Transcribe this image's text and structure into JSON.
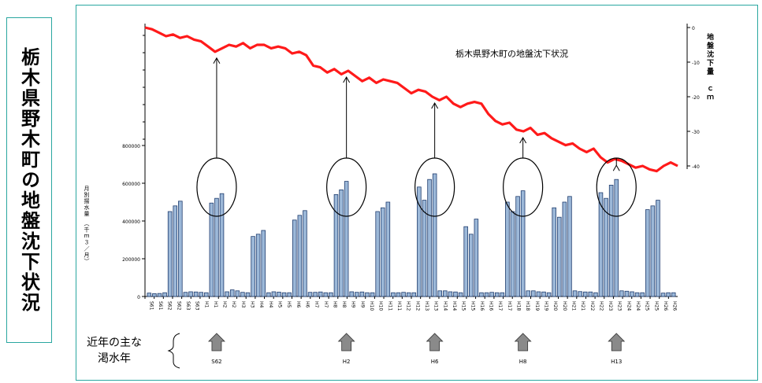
{
  "side_title": "栃木県野木町の地盤沈下状況",
  "chart_data": {
    "type": "bar+line",
    "title": "栃木県野木町の地盤沈下状況",
    "right_axis_label": "地盤沈下量　ｃｍ",
    "left_axis_label": "月別揚水量　（千ｍ３／月）",
    "left_ticks": [
      "0",
      "200000",
      "400000",
      "600000",
      "800000"
    ],
    "right_ticks": [
      "0",
      "-10",
      "-20",
      "-30",
      "-40"
    ],
    "left_ylim": [
      0,
      800000
    ],
    "right_ylim": [
      -48,
      0
    ],
    "x_tick_labels": [
      "S61",
      "S61",
      "S62",
      "S62",
      "S63",
      "S63",
      "H1",
      "H1",
      "H2",
      "H2",
      "H3",
      "H3",
      "H4",
      "H4",
      "H5",
      "H5",
      "H6",
      "H6",
      "H7",
      "H7",
      "H8",
      "H8",
      "H9",
      "H9",
      "H10",
      "H10",
      "H11",
      "H11",
      "H12",
      "H12",
      "H13",
      "H13",
      "H14",
      "H14",
      "H15",
      "H15",
      "H16",
      "H16",
      "H17",
      "H17",
      "H18",
      "H18",
      "H19",
      "H19",
      "H20",
      "H20",
      "H21",
      "H21",
      "H22",
      "H22",
      "H23",
      "H23",
      "H24",
      "H24",
      "H25",
      "H25",
      "H26",
      "H26"
    ],
    "bars": [
      18000,
      15000,
      16000,
      20000,
      450000,
      480000,
      505000,
      22000,
      25000,
      24000,
      22000,
      20000,
      495000,
      520000,
      545000,
      25000,
      35000,
      30000,
      22000,
      20000,
      318000,
      330000,
      350000,
      20000,
      25000,
      23000,
      20000,
      20000,
      405000,
      430000,
      455000,
      22000,
      22000,
      24000,
      20000,
      20000,
      540000,
      565000,
      610000,
      25000,
      22000,
      24000,
      20000,
      20000,
      450000,
      470000,
      500000,
      20000,
      20000,
      22000,
      20000,
      20000,
      580000,
      510000,
      620000,
      650000,
      30000,
      30000,
      25000,
      24000,
      20000,
      370000,
      330000,
      410000,
      20000,
      20000,
      22000,
      20000,
      20000,
      500000,
      450000,
      530000,
      560000,
      30000,
      30000,
      25000,
      24000,
      20000,
      470000,
      420000,
      500000,
      530000,
      30000,
      26000,
      24000,
      24000,
      20000,
      550000,
      520000,
      590000,
      620000,
      30000,
      28000,
      25000,
      20000,
      20000,
      460000,
      480000,
      510000,
      18000,
      20000,
      20000
    ],
    "subsidence_cm": [
      0,
      -0.5,
      -1.5,
      -2.5,
      -2,
      -3,
      -2.5,
      -3.5,
      -4,
      -5.5,
      -7,
      -6,
      -5,
      -5.5,
      -4.5,
      -6,
      -5,
      -5,
      -6,
      -5.5,
      -6,
      -7.5,
      -7,
      -8,
      -11,
      -11.5,
      -13,
      -12,
      -13.5,
      -12.5,
      -14,
      -15.5,
      -14.5,
      -16,
      -15,
      -15.5,
      -16,
      -17.5,
      -19,
      -18,
      -18.5,
      -20,
      -21,
      -20,
      -22,
      -23,
      -22,
      -21.5,
      -22,
      -25,
      -27,
      -28,
      -27.5,
      -29.5,
      -30,
      -29,
      -31,
      -30.5,
      -32,
      -33,
      -34,
      -33.5,
      -35,
      -36,
      -35,
      -37.5,
      -39,
      -38,
      -38.5,
      -39.5,
      -40.5,
      -40,
      -41,
      -41.5,
      -40,
      -39,
      -40
    ],
    "circle_annotations_bar_index": [
      13,
      38,
      55,
      72,
      90
    ],
    "drought_years_label": "近年の主な\n渇水年",
    "drought_arrow_labels": [
      "S62",
      "H2",
      "H6",
      "H8",
      "H13"
    ]
  }
}
